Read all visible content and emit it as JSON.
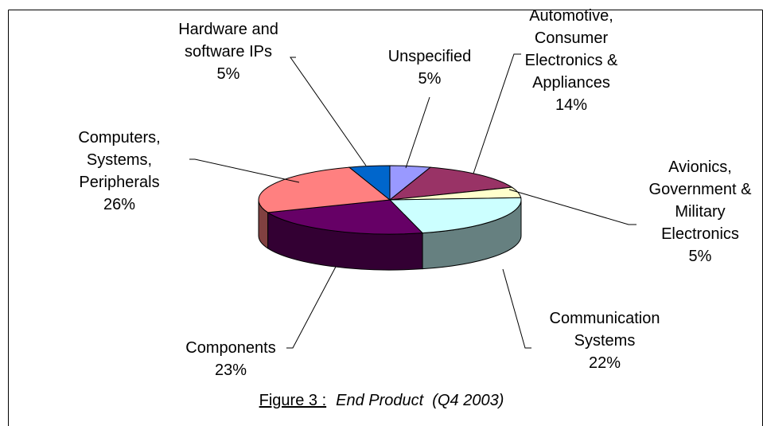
{
  "chart_data": {
    "type": "pie",
    "title_prefix": "Figure 3 :",
    "title": "End Product  (Q4 2003)",
    "categories": [
      "Unspecified",
      "Automotive,\nConsumer\nElectronics &\nAppliances",
      "Avionics,\nGovernment &\nMilitary\nElectronics",
      "Communication\nSystems",
      "Components",
      "Computers,\nSystems,\nPeripherals",
      "Hardware and\nsoftware IPs"
    ],
    "values": [
      5,
      14,
      5,
      22,
      23,
      26,
      5
    ],
    "value_labels": [
      "5%",
      "14%",
      "5%",
      "22%",
      "23%",
      "26%",
      "5%"
    ],
    "colors": [
      "#9999ff",
      "#993366",
      "#ffffcc",
      "#ccffff",
      "#660066",
      "#ff8080",
      "#0066cc"
    ]
  }
}
